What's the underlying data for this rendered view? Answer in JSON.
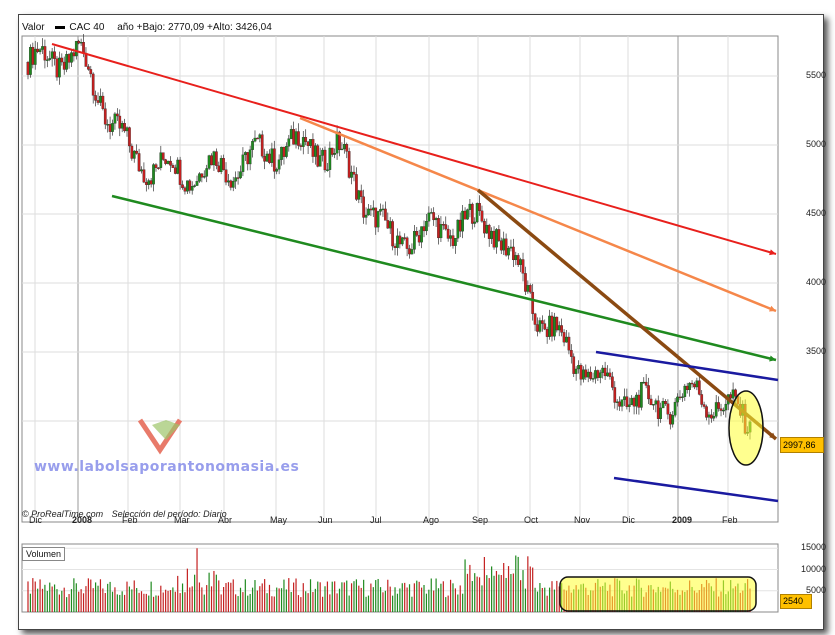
{
  "header": {
    "valor_label": "Valor",
    "series_name": "CAC 40",
    "range_text": "año +Bajo: 2770,09 +Alto: 3426,04"
  },
  "footer": {
    "source": "© ProRealTime.com",
    "selection": "Selección del período: Diario"
  },
  "watermark": "www.labolsaporantonomasia.es",
  "price_badge": "2997,86",
  "volume_label": "Volumen",
  "volume_badge": "2540",
  "x_axis": [
    {
      "label": "Dic",
      "bold": false
    },
    {
      "label": "2008",
      "bold": true
    },
    {
      "label": "Feb",
      "bold": false
    },
    {
      "label": "Mar",
      "bold": false
    },
    {
      "label": "Abr",
      "bold": false
    },
    {
      "label": "May",
      "bold": false
    },
    {
      "label": "Jun",
      "bold": false
    },
    {
      "label": "Jul",
      "bold": false
    },
    {
      "label": "Ago",
      "bold": false
    },
    {
      "label": "Sep",
      "bold": false
    },
    {
      "label": "Oct",
      "bold": false
    },
    {
      "label": "Nov",
      "bold": false
    },
    {
      "label": "Dic",
      "bold": false
    },
    {
      "label": "2009",
      "bold": true
    },
    {
      "label": "Feb",
      "bold": false
    }
  ],
  "y_axis": [
    "5500",
    "5000",
    "4500",
    "4000",
    "3500"
  ],
  "vol_axis": [
    "15000",
    "10000",
    "5000"
  ],
  "colors": {
    "red_trend": "#e8201c",
    "orange_trend": "#f5874a",
    "green_trend": "#1f8a1f",
    "brown_trend": "#8b4a12",
    "blue_channel": "#1a1aa0",
    "highlight": "#ffff33",
    "up_candle": "#1f8a1f",
    "down_candle": "#c42020"
  },
  "chart_data": {
    "type": "line",
    "title": "CAC 40",
    "ylabel": "",
    "xlabel": "",
    "ylim": [
      2770,
      5750
    ],
    "x": [
      "Dic",
      "2008",
      "Feb",
      "Mar",
      "Abr",
      "May",
      "Jun",
      "Jul",
      "Ago",
      "Sep",
      "Oct",
      "Nov",
      "Dic",
      "2009",
      "Feb"
    ],
    "series": [
      {
        "name": "CAC 40",
        "values": [
          5600,
          5650,
          4900,
          4800,
          4850,
          5000,
          4950,
          4300,
          4400,
          4450,
          3700,
          3300,
          3100,
          3200,
          3000
        ]
      }
    ],
    "trendlines": [
      {
        "color": "red",
        "from": 5750,
        "to": 4100
      },
      {
        "color": "orange",
        "from": 5100,
        "to": 3730
      },
      {
        "color": "green",
        "from": 4520,
        "to": 3430
      },
      {
        "color": "brown",
        "from": 4560,
        "to": 3020
      },
      {
        "color": "blue-upper",
        "from": 3500,
        "to": 3320
      },
      {
        "color": "blue-lower",
        "from": 2920,
        "to": 2780
      }
    ],
    "volume": {
      "ylim": [
        0,
        16000
      ],
      "last": 2540
    },
    "grid": true
  }
}
